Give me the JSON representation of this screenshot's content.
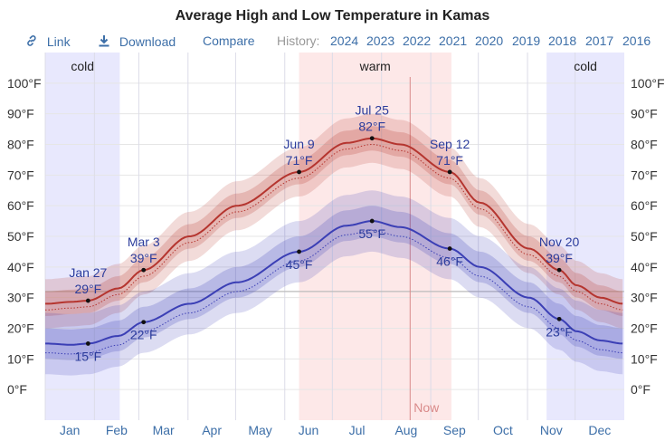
{
  "title": "Average High and Low Temperature in Kamas",
  "toolbar": {
    "link_label": "Link",
    "download_label": "Download",
    "compare_label": "Compare",
    "history_label": "History:",
    "years": [
      "2024",
      "2023",
      "2022",
      "2021",
      "2020",
      "2019",
      "2018",
      "2017",
      "2016"
    ]
  },
  "chart_data": {
    "type": "line",
    "x_unit": "day of year",
    "ylim": [
      -10,
      110
    ],
    "y_ticks": [
      "0°F",
      "10°F",
      "20°F",
      "30°F",
      "40°F",
      "50°F",
      "60°F",
      "70°F",
      "80°F",
      "90°F",
      "100°F"
    ],
    "months": [
      "Jan",
      "Feb",
      "Mar",
      "Apr",
      "May",
      "Jun",
      "Jul",
      "Aug",
      "Sep",
      "Oct",
      "Nov",
      "Dec"
    ],
    "seasons": [
      {
        "label": "cold",
        "start_day": 0,
        "end_day": 47
      },
      {
        "label": "warm",
        "start_day": 160,
        "end_day": 256
      },
      {
        "label": "cold",
        "start_day": 316,
        "end_day": 365
      }
    ],
    "now_day": 230,
    "now_label": "Now",
    "freezing_line": 32,
    "series": [
      {
        "color": "#b5352f",
        "days": [
          1,
          16,
          27,
          46,
          62,
          91,
          121,
          160,
          190,
          206,
          224,
          255,
          274,
          305,
          324,
          335,
          350,
          364
        ],
        "values": [
          28,
          28.6,
          29,
          33,
          39,
          50,
          60,
          71,
          80.5,
          82,
          80,
          71,
          61,
          46,
          39,
          34,
          30,
          28
        ],
        "p25_offset": -4,
        "p75_offset": 4,
        "p10_offset": -8,
        "p90_offset": 8,
        "dotted_offset": -2
      },
      {
        "color": "#3b3fb5",
        "days": [
          1,
          16,
          27,
          46,
          62,
          91,
          121,
          160,
          190,
          206,
          224,
          255,
          274,
          305,
          324,
          335,
          350,
          364
        ],
        "values": [
          15,
          14.6,
          15,
          17.5,
          22,
          28,
          35,
          45,
          53.5,
          55,
          53,
          46,
          40,
          30,
          23,
          19,
          16,
          15
        ],
        "p25_offset": -5,
        "p75_offset": 5,
        "p10_offset": -10,
        "p90_offset": 10,
        "dotted_offset": -3
      }
    ],
    "annotations": [
      {
        "day": 27,
        "value": 29,
        "date": "Jan 27",
        "temp": "29°F",
        "pos": "above"
      },
      {
        "day": 62,
        "value": 39,
        "date": "Mar 3",
        "temp": "39°F",
        "pos": "above"
      },
      {
        "day": 160,
        "value": 71,
        "date": "Jun 9",
        "temp": "71°F",
        "pos": "above"
      },
      {
        "day": 206,
        "value": 82,
        "date": "Jul 25",
        "temp": "82°F",
        "pos": "above"
      },
      {
        "day": 255,
        "value": 71,
        "date": "Sep 12",
        "temp": "71°F",
        "pos": "above"
      },
      {
        "day": 324,
        "value": 39,
        "date": "Nov 20",
        "temp": "39°F",
        "pos": "above"
      },
      {
        "day": 27,
        "value": 15,
        "date": "",
        "temp": "15°F",
        "pos": "below"
      },
      {
        "day": 62,
        "value": 22,
        "date": "",
        "temp": "22°F",
        "pos": "below"
      },
      {
        "day": 160,
        "value": 45,
        "date": "",
        "temp": "45°F",
        "pos": "below"
      },
      {
        "day": 206,
        "value": 55,
        "date": "",
        "temp": "55°F",
        "pos": "below"
      },
      {
        "day": 255,
        "value": 46,
        "date": "",
        "temp": "46°F",
        "pos": "below"
      },
      {
        "day": 324,
        "value": 23,
        "date": "",
        "temp": "23°F",
        "pos": "below"
      }
    ],
    "colors": {
      "cold_band": "#e8e8fd",
      "warm_band": "#fde8e8",
      "now_line": "#d98a8a"
    }
  }
}
